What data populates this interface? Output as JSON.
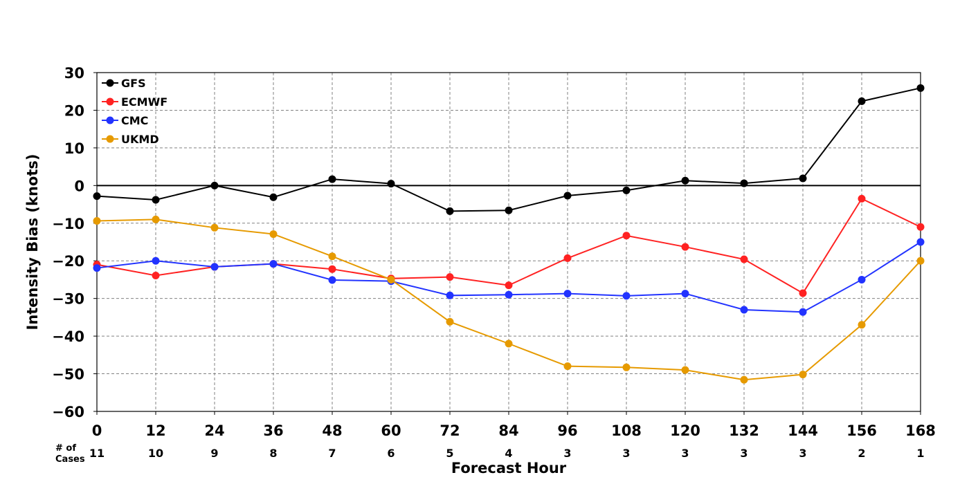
{
  "chart_data": {
    "type": "line",
    "xlabel": "Forecast Hour",
    "ylabel": "Intensity Bias (knots)",
    "x": [
      0,
      12,
      24,
      36,
      48,
      60,
      72,
      84,
      96,
      108,
      120,
      132,
      144,
      156,
      168
    ],
    "xlim": [
      0,
      168
    ],
    "ylim": [
      -60,
      30
    ],
    "yticks": [
      30,
      20,
      10,
      0,
      -10,
      -20,
      -30,
      -40,
      -50,
      -60
    ],
    "ytick_labels": [
      "30",
      "20",
      "10",
      "0",
      "−10",
      "−20",
      "−30",
      "−40",
      "−50",
      "−60"
    ],
    "grid": true,
    "zero_line": true,
    "legend_position": "top-left",
    "cases_label": "# of Cases",
    "cases_label_lines": [
      "# of",
      "Cases"
    ],
    "cases": [
      11,
      10,
      9,
      8,
      7,
      6,
      5,
      4,
      3,
      3,
      3,
      3,
      3,
      2,
      1
    ],
    "series": [
      {
        "name": "GFS",
        "color": "#000000",
        "values": [
          -2.8,
          -3.8,
          0.0,
          -3.1,
          1.7,
          0.5,
          -6.8,
          -6.6,
          -2.7,
          -1.3,
          1.3,
          0.6,
          1.9,
          22.4,
          25.9
        ]
      },
      {
        "name": "ECMWF",
        "color": "#ff2222",
        "values": [
          -21.0,
          -23.9,
          -21.6,
          -20.8,
          -22.2,
          -24.7,
          -24.3,
          -26.5,
          -19.3,
          -13.3,
          -16.3,
          -19.6,
          -28.6,
          -3.5,
          -11.0
        ]
      },
      {
        "name": "CMC",
        "color": "#2233ff",
        "values": [
          -21.9,
          -20.0,
          -21.6,
          -20.8,
          -25.1,
          -25.4,
          -29.2,
          -29.0,
          -28.7,
          -29.3,
          -28.7,
          -33.0,
          -33.6,
          -25.0,
          -15.0
        ]
      },
      {
        "name": "UKMD",
        "color": "#e69a00",
        "values": [
          -9.4,
          -9.0,
          -11.2,
          -12.9,
          -18.8,
          -25.0,
          -36.2,
          -42.0,
          -48.0,
          -48.3,
          -49.0,
          -51.6,
          -50.2,
          -37.0,
          -20.0
        ]
      }
    ]
  }
}
